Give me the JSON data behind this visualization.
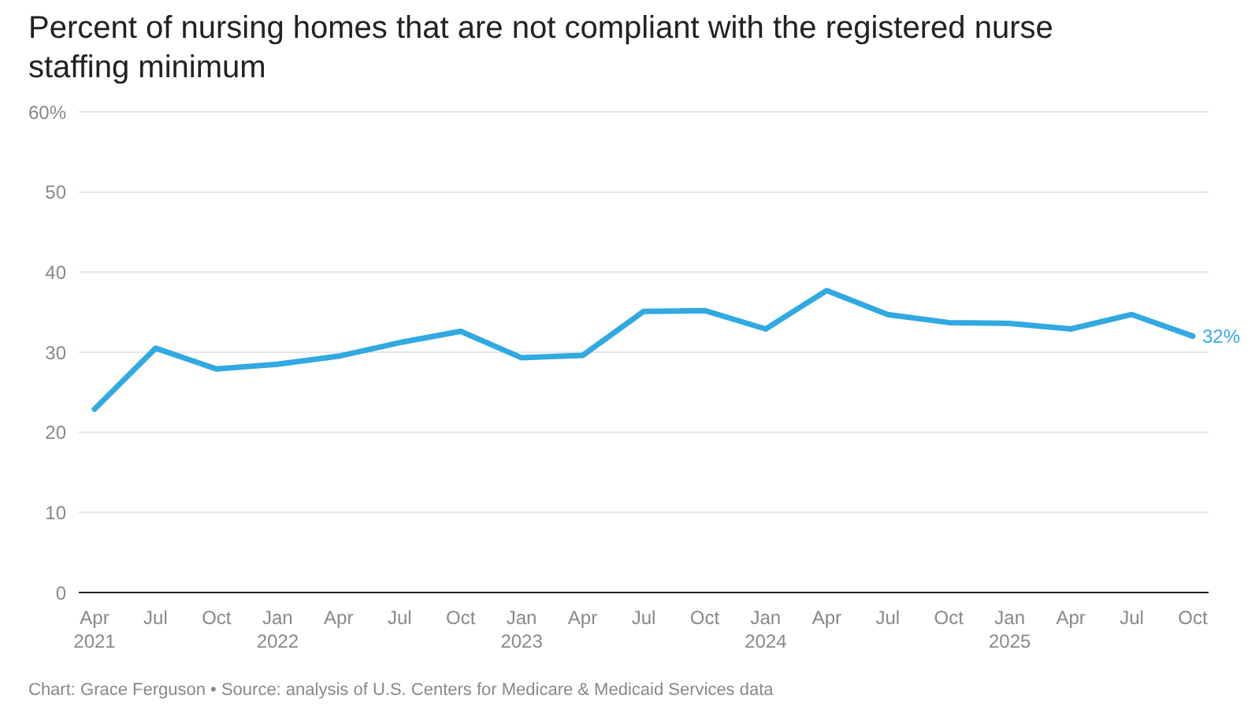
{
  "chart_data": {
    "type": "line",
    "title": "Percent of nursing homes that are not compliant with the registered nurse staffing minimum",
    "categories": [
      "Apr 2021",
      "Jul",
      "Oct",
      "Jan 2022",
      "Apr",
      "Jul",
      "Oct",
      "Jan 2023",
      "Apr",
      "Jul",
      "Oct",
      "Jan 2024",
      "Apr",
      "Jul",
      "Oct",
      "Jan 2025",
      "Apr",
      "Jul",
      "Oct"
    ],
    "series": [
      {
        "color": "#31a9e1",
        "values": [
          22.9,
          30.5,
          27.9,
          28.5,
          29.5,
          31.2,
          32.6,
          29.3,
          29.6,
          35.1,
          35.2,
          32.9,
          37.7,
          34.7,
          33.7,
          33.6,
          32.9,
          34.7,
          32
        ],
        "value_labels": [
          null,
          null,
          null,
          null,
          null,
          null,
          null,
          null,
          null,
          null,
          null,
          null,
          null,
          null,
          null,
          null,
          null,
          null,
          "32%"
        ]
      }
    ],
    "ylim": [
      0,
      60
    ],
    "yticks": [
      0,
      10,
      20,
      30,
      40,
      50,
      {
        "value": 60,
        "label": "60%"
      }
    ],
    "grid": "y",
    "marker": "none",
    "line_style": "solid",
    "annotations": [
      "Chart: Grace Ferguson • Source: analysis of U.S. Centers for Medicare & Medicaid Services data"
    ]
  }
}
